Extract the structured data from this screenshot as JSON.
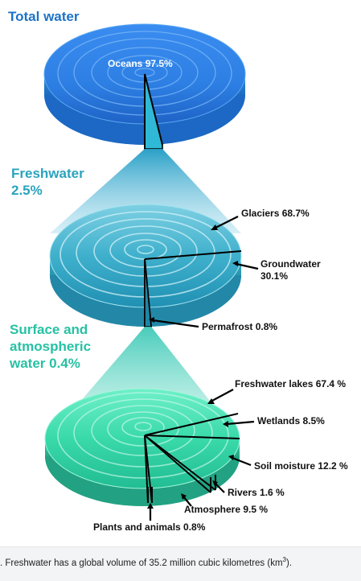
{
  "sections": {
    "total": {
      "title": "Total water"
    },
    "fresh": {
      "title": "Freshwater 2.5%"
    },
    "surface": {
      "title": "Surface and atmospheric water 0.4%"
    }
  },
  "labels": {
    "oceans": "Oceans 97.5%",
    "glaciers": "Glaciers 68.7%",
    "groundwater_line1": "Groundwater",
    "groundwater_line2": "30.1%",
    "permafrost": "Permafrost 0.8%",
    "lakes": "Freshwater lakes 67.4 %",
    "wetlands": "Wetlands 8.5%",
    "soil": "Soil moisture 12.2 %",
    "rivers": "Rivers 1.6 %",
    "atmosphere": "Atmosphere 9.5 %",
    "plants": "Plants and animals 0.8%"
  },
  "caption": {
    "text": ". Freshwater has a global volume of 35.2 million cubic kilometres (km",
    "superscript": "3",
    "suffix": ")."
  },
  "colors": {
    "total_disc": "#2f7ee0",
    "fresh_disc": "#2ca3c0",
    "surface_disc": "#35d4a6",
    "total_title": "#1c73c9",
    "fresh_title": "#2aa3bd",
    "surface_title": "#27c1a3"
  }
}
